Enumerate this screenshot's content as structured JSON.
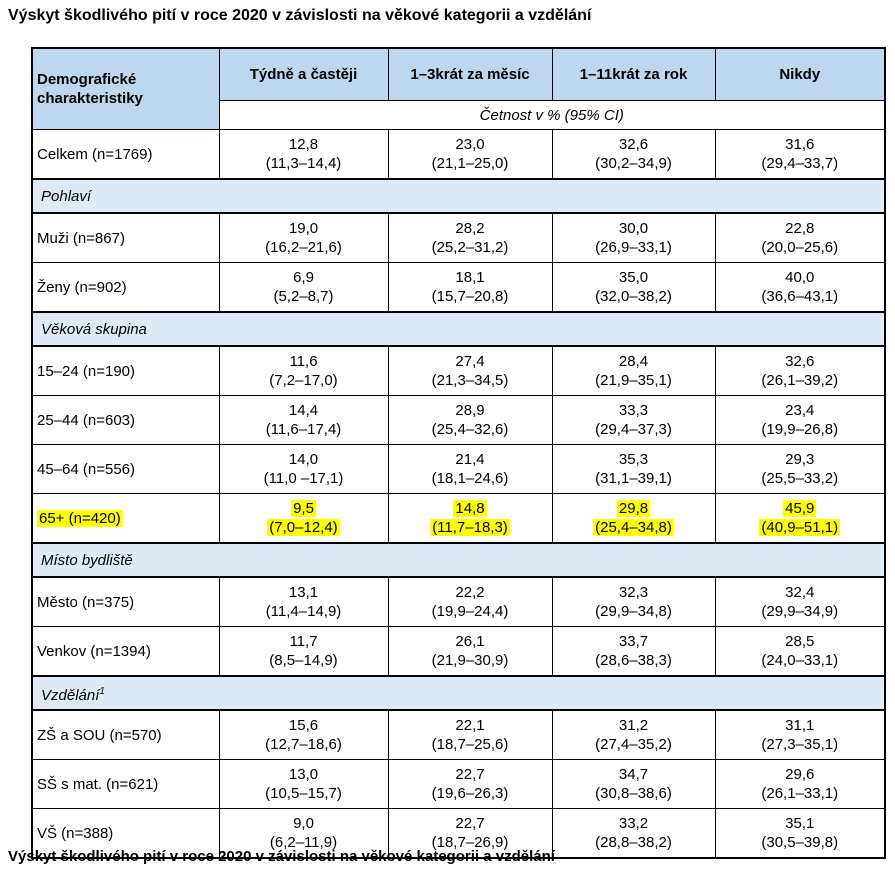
{
  "page": {
    "title": "Výskyt škodlivého pití v roce 2020 v závislosti na věkové kategorii a vzdělání",
    "caption": "Výskyt škodlivého pití v roce 2020 v závislosti na věkové kategorii a vzdělání"
  },
  "colors": {
    "header_bg": "#BDD7EE",
    "section_bg": "#DEEAF6",
    "highlight": "#FFFF00",
    "border": "#000000"
  },
  "table": {
    "corner_header": "Demografické charakteristiky",
    "columns": [
      "Týdně a častěji",
      "1–3krát za měsíc",
      "1–11krát za rok",
      "Nikdy"
    ],
    "subheader": "Četnost v % (95% CI)",
    "rows": [
      {
        "type": "data",
        "label": "Celkem (n=1769)",
        "cells": [
          [
            "12,8",
            "(11,3–14,4)"
          ],
          [
            "23,0",
            "(21,1–25,0)"
          ],
          [
            "32,6",
            "(30,2–34,9)"
          ],
          [
            "31,6",
            "(29,4–33,7)"
          ]
        ]
      },
      {
        "type": "section",
        "label": "Pohlaví"
      },
      {
        "type": "data",
        "label": "Muži (n=867)",
        "cells": [
          [
            "19,0",
            "(16,2–21,6)"
          ],
          [
            "28,2",
            "(25,2–31,2)"
          ],
          [
            "30,0",
            "(26,9–33,1)"
          ],
          [
            "22,8",
            "(20,0–25,6)"
          ]
        ]
      },
      {
        "type": "data",
        "label": "Ženy (n=902)",
        "cells": [
          [
            "6,9",
            "(5,2–8,7)"
          ],
          [
            "18,1",
            "(15,7–20,8)"
          ],
          [
            "35,0",
            "(32,0–38,2)"
          ],
          [
            "40,0",
            "(36,6–43,1)"
          ]
        ]
      },
      {
        "type": "section",
        "label": "Věková skupina"
      },
      {
        "type": "data",
        "label": "15–24 (n=190)",
        "cells": [
          [
            "11,6",
            "(7,2–17,0)"
          ],
          [
            "27,4",
            "(21,3–34,5)"
          ],
          [
            "28,4",
            "(21,9–35,1)"
          ],
          [
            "32,6",
            "(26,1–39,2)"
          ]
        ]
      },
      {
        "type": "data",
        "label": "25–44 (n=603)",
        "cells": [
          [
            "14,4",
            "(11,6–17,4)"
          ],
          [
            "28,9",
            "(25,4–32,6)"
          ],
          [
            "33,3",
            "(29,4–37,3)"
          ],
          [
            "23,4",
            "(19,9–26,8)"
          ]
        ]
      },
      {
        "type": "data",
        "label": "45–64 (n=556)",
        "cells": [
          [
            "14,0",
            "(11,0 –17,1)"
          ],
          [
            "21,4",
            "(18,1–24,6)"
          ],
          [
            "35,3",
            "(31,1–39,1)"
          ],
          [
            "29,3",
            "(25,5–33,2)"
          ]
        ]
      },
      {
        "type": "data",
        "label": "65+ (n=420)",
        "highlight": true,
        "cells": [
          [
            "9,5",
            "(7,0–12,4)"
          ],
          [
            "14,8",
            "(11,7–18,3)"
          ],
          [
            "29,8",
            "(25,4–34,8)"
          ],
          [
            "45,9",
            "(40,9–51,1)"
          ]
        ]
      },
      {
        "type": "section",
        "label": "Místo bydliště"
      },
      {
        "type": "data",
        "label": "Město (n=375)",
        "cells": [
          [
            "13,1",
            "(11,4–14,9)"
          ],
          [
            "22,2",
            "(19,9–24,4)"
          ],
          [
            "32,3",
            "(29,9–34,8)"
          ],
          [
            "32,4",
            "(29,9–34,9)"
          ]
        ]
      },
      {
        "type": "data",
        "label": "Venkov (n=1394)",
        "cells": [
          [
            "11,7",
            "(8,5–14,9)"
          ],
          [
            "26,1",
            "(21,9–30,9)"
          ],
          [
            "33,7",
            "(28,6–38,3)"
          ],
          [
            "28,5",
            "(24,0–33,1)"
          ]
        ]
      },
      {
        "type": "section",
        "label": "Vzdělání",
        "label_sup": "1"
      },
      {
        "type": "data",
        "label": "ZŠ a SOU (n=570)",
        "cells": [
          [
            "15,6",
            "(12,7–18,6)"
          ],
          [
            "22,1",
            "(18,7–25,6)"
          ],
          [
            "31,2",
            "(27,4–35,2)"
          ],
          [
            "31,1",
            "(27,3–35,1)"
          ]
        ]
      },
      {
        "type": "data",
        "label": "SŠ s mat. (n=621)",
        "cells": [
          [
            "13,0",
            "(10,5–15,7)"
          ],
          [
            "22,7",
            "(19,6–26,3)"
          ],
          [
            "34,7",
            "(30,8–38,6)"
          ],
          [
            "29,6",
            "(26,1–33,1)"
          ]
        ]
      },
      {
        "type": "data",
        "label": "VŠ (n=388)",
        "cells": [
          [
            "9,0",
            "(6,2–11,9)"
          ],
          [
            "22,7",
            "(18,7–26,9)"
          ],
          [
            "33,2",
            "(28,8–38,2)"
          ],
          [
            "35,1",
            "(30,5–39,8)"
          ]
        ]
      }
    ]
  }
}
